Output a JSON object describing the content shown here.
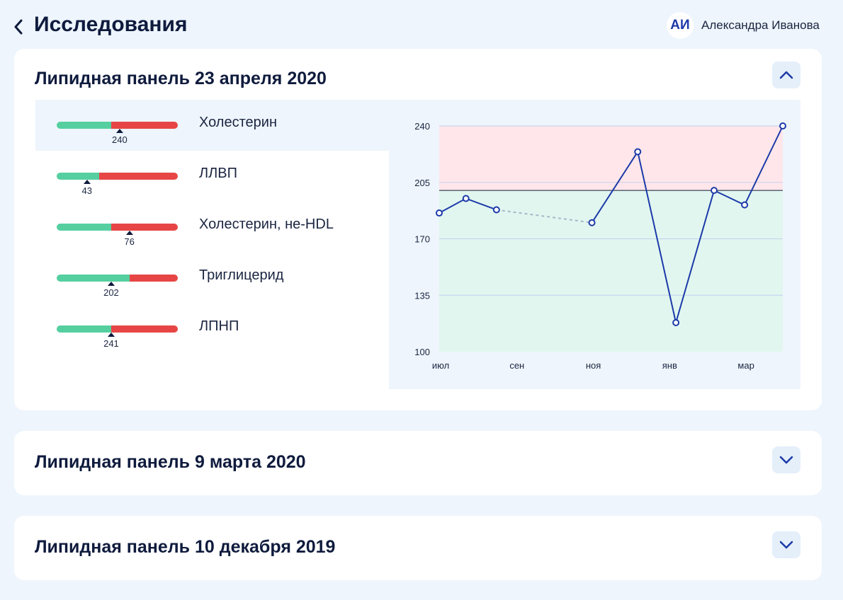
{
  "header": {
    "title": "Исследования",
    "avatar_initials": "АИ",
    "user_name": "Александра Иванова"
  },
  "panels": [
    {
      "title": "Липидная панель 23 апреля 2020",
      "expanded": true,
      "parameters": [
        {
          "name": "Холестерин",
          "value": "240",
          "green_fraction": 0.45,
          "marker_fraction": 0.52,
          "selected": true
        },
        {
          "name": "ЛЛВП",
          "value": "43",
          "green_fraction": 0.35,
          "marker_fraction": 0.25,
          "selected": false
        },
        {
          "name": "Холестерин, не-HDL",
          "value": "76",
          "green_fraction": 0.45,
          "marker_fraction": 0.6,
          "selected": false
        },
        {
          "name": "Триглицерид",
          "value": "202",
          "green_fraction": 0.6,
          "marker_fraction": 0.45,
          "selected": false
        },
        {
          "name": "ЛПНП",
          "value": "241",
          "green_fraction": 0.45,
          "marker_fraction": 0.45,
          "selected": false
        }
      ]
    },
    {
      "title": "Липидная панель 9 марта 2020",
      "expanded": false
    },
    {
      "title": "Липидная панель 10 декабря 2019",
      "expanded": false
    }
  ],
  "colors": {
    "bar_green": "#55cfa0",
    "bar_red": "#e74545",
    "chart_line": "#1c3aa9",
    "zone_high": "#ffe6ea",
    "zone_normal": "#e1f6ef",
    "grid": "#c3d0ef",
    "toggle_bg": "#e4effa"
  },
  "icons": {
    "back": "chevron-left-icon",
    "collapse": "chevron-up-icon",
    "expand": "chevron-down-icon"
  },
  "chart_data": {
    "type": "line",
    "ylim": [
      100,
      240
    ],
    "yticks": [
      100,
      135,
      170,
      205,
      240
    ],
    "xticks": [
      {
        "label": "июл",
        "x": 0
      },
      {
        "label": "сен",
        "x": 2
      },
      {
        "label": "ноя",
        "x": 4
      },
      {
        "label": "янв",
        "x": 6
      },
      {
        "label": "мар",
        "x": 8
      }
    ],
    "threshold": 200,
    "high_zone_from": 200,
    "points": [
      {
        "x": 0,
        "y": 186
      },
      {
        "x": 0.7,
        "y": 195
      },
      {
        "x": 1.5,
        "y": 188
      },
      {
        "x": 4,
        "y": 180
      },
      {
        "x": 5.2,
        "y": 224
      },
      {
        "x": 6.2,
        "y": 118
      },
      {
        "x": 7.2,
        "y": 200
      },
      {
        "x": 8,
        "y": 191
      },
      {
        "x": 9,
        "y": 240
      }
    ],
    "gap_after_index": 2,
    "grid": true
  }
}
